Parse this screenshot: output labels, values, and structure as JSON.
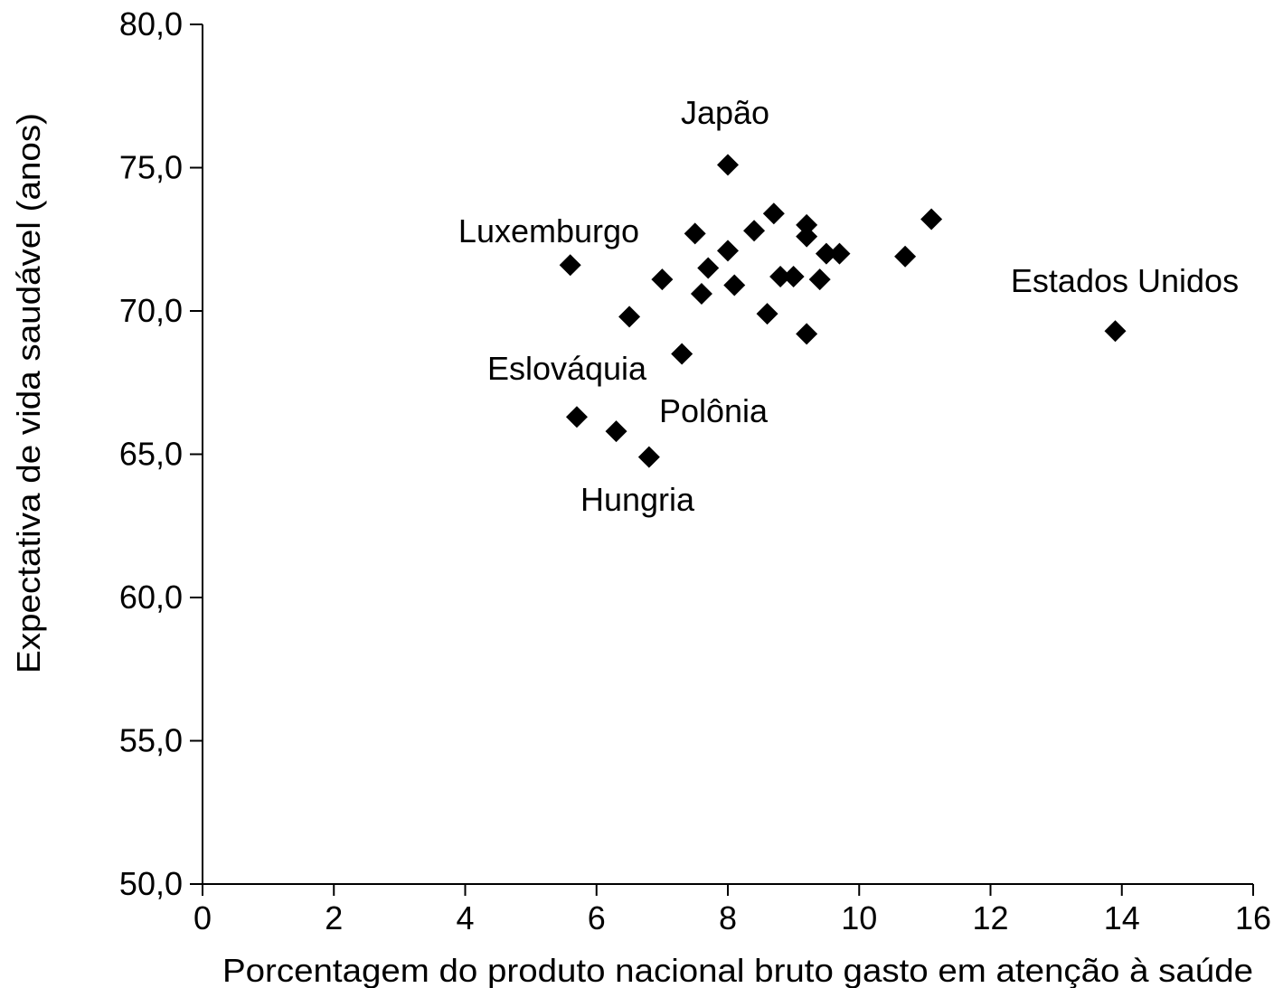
{
  "chart_data": {
    "type": "scatter",
    "title": "",
    "xlabel": "Porcentagem do produto nacional bruto gasto em atenção à saúde",
    "ylabel": "Expectativa de vida saudável (anos)",
    "xlim": [
      0,
      16
    ],
    "ylim": [
      50,
      80
    ],
    "x_ticks": [
      0,
      2,
      4,
      6,
      8,
      10,
      12,
      14,
      16
    ],
    "x_tick_labels": [
      "0",
      "2",
      "4",
      "6",
      "8",
      "10",
      "12",
      "14",
      "16"
    ],
    "y_ticks": [
      50,
      55,
      60,
      65,
      70,
      75,
      80
    ],
    "y_tick_labels": [
      "50,0",
      "55,0",
      "60,0",
      "65,0",
      "70,0",
      "75,0",
      "80,0"
    ],
    "grid": false,
    "legend": "none",
    "marker": "diamond",
    "marker_color": "#000000",
    "points": [
      {
        "x": 5.6,
        "y": 71.6
      },
      {
        "x": 5.7,
        "y": 66.3
      },
      {
        "x": 6.3,
        "y": 65.8
      },
      {
        "x": 6.5,
        "y": 69.8
      },
      {
        "x": 6.8,
        "y": 64.9
      },
      {
        "x": 7.0,
        "y": 71.1
      },
      {
        "x": 7.3,
        "y": 68.5
      },
      {
        "x": 7.5,
        "y": 72.7
      },
      {
        "x": 7.6,
        "y": 70.6
      },
      {
        "x": 7.7,
        "y": 71.5
      },
      {
        "x": 8.0,
        "y": 75.1
      },
      {
        "x": 8.0,
        "y": 72.1
      },
      {
        "x": 8.1,
        "y": 70.9
      },
      {
        "x": 8.4,
        "y": 72.8
      },
      {
        "x": 8.6,
        "y": 69.9
      },
      {
        "x": 8.7,
        "y": 73.4
      },
      {
        "x": 8.8,
        "y": 71.2
      },
      {
        "x": 9.0,
        "y": 71.2
      },
      {
        "x": 9.2,
        "y": 73.0
      },
      {
        "x": 9.2,
        "y": 72.6
      },
      {
        "x": 9.2,
        "y": 69.2
      },
      {
        "x": 9.4,
        "y": 71.1
      },
      {
        "x": 9.5,
        "y": 72.0
      },
      {
        "x": 9.7,
        "y": 72.0
      },
      {
        "x": 10.7,
        "y": 71.9
      },
      {
        "x": 11.1,
        "y": 73.2
      },
      {
        "x": 13.9,
        "y": 69.3
      }
    ],
    "annotations": [
      {
        "text": "Japão"
      },
      {
        "text": "Luxemburgo"
      },
      {
        "text": "Estados Unidos"
      },
      {
        "text": "Eslováquia"
      },
      {
        "text": "Polônia"
      },
      {
        "text": "Hungria"
      }
    ]
  }
}
